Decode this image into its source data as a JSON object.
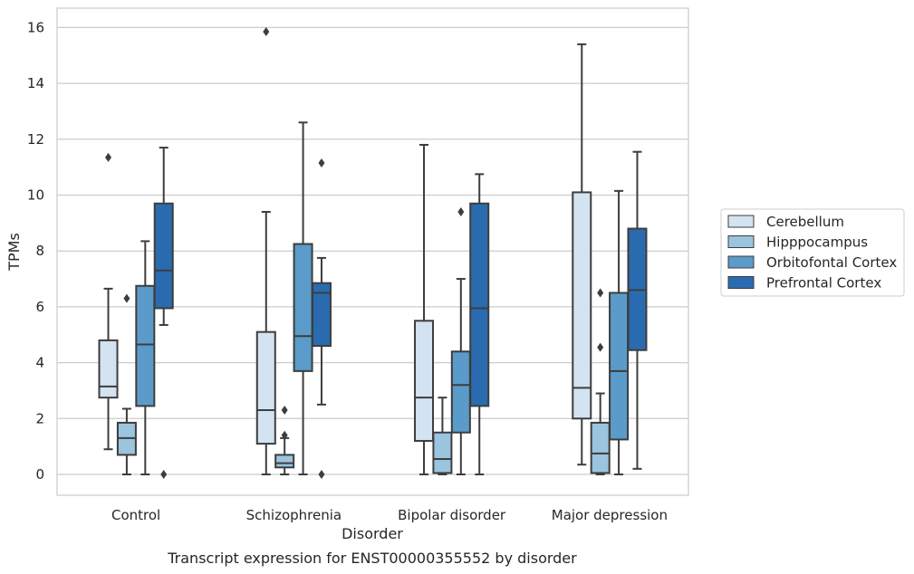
{
  "chart_data": {
    "type": "boxplot",
    "title": "Transcript expression for ENST00000355552 by disorder",
    "xlabel": "Disorder",
    "ylabel": "TPMs",
    "ylim": [
      -0.75,
      16.65
    ],
    "yticks": [
      0,
      2,
      4,
      6,
      8,
      10,
      12,
      14,
      16
    ],
    "grid": "horizontal",
    "legend_position": "right",
    "categories": [
      "Control",
      "Schizophrenia",
      "Bipolar disorder",
      "Major depression"
    ],
    "series": [
      {
        "name": "Cerebellum",
        "color": "#d4e3f1",
        "boxes": [
          {
            "whislo": 0.9,
            "q1": 2.75,
            "med": 3.15,
            "q3": 4.8,
            "whishi": 6.65,
            "fliers": [
              11.35
            ]
          },
          {
            "whislo": 0.0,
            "q1": 1.1,
            "med": 2.3,
            "q3": 5.1,
            "whishi": 9.4,
            "fliers": [
              15.85
            ]
          },
          {
            "whislo": 0.0,
            "q1": 1.2,
            "med": 2.75,
            "q3": 5.5,
            "whishi": 11.8,
            "fliers": []
          },
          {
            "whislo": 0.35,
            "q1": 2.0,
            "med": 3.1,
            "q3": 10.1,
            "whishi": 15.4,
            "fliers": []
          }
        ]
      },
      {
        "name": "Hipppocampus",
        "color": "#9bc4df",
        "boxes": [
          {
            "whislo": 0.0,
            "q1": 0.7,
            "med": 1.3,
            "q3": 1.85,
            "whishi": 2.35,
            "fliers": [
              6.3
            ]
          },
          {
            "whislo": 0.0,
            "q1": 0.25,
            "med": 0.4,
            "q3": 0.7,
            "whishi": 1.3,
            "fliers": [
              1.4,
              2.3
            ]
          },
          {
            "whislo": 0.0,
            "q1": 0.05,
            "med": 0.55,
            "q3": 1.5,
            "whishi": 2.75,
            "fliers": []
          },
          {
            "whislo": 0.0,
            "q1": 0.05,
            "med": 0.75,
            "q3": 1.85,
            "whishi": 2.9,
            "fliers": [
              4.55,
              6.5
            ]
          }
        ]
      },
      {
        "name": "Orbitofontal Cortex",
        "color": "#5a9bc9",
        "boxes": [
          {
            "whislo": 0.0,
            "q1": 2.45,
            "med": 4.65,
            "q3": 6.75,
            "whishi": 8.35,
            "fliers": []
          },
          {
            "whislo": 0.0,
            "q1": 3.7,
            "med": 4.95,
            "q3": 8.25,
            "whishi": 12.6,
            "fliers": []
          },
          {
            "whislo": 0.0,
            "q1": 1.5,
            "med": 3.2,
            "q3": 4.4,
            "whishi": 7.0,
            "fliers": [
              9.4
            ]
          },
          {
            "whislo": 0.0,
            "q1": 1.25,
            "med": 3.7,
            "q3": 6.5,
            "whishi": 10.15,
            "fliers": []
          }
        ]
      },
      {
        "name": "Prefrontal Cortex",
        "color": "#2a6bb0",
        "boxes": [
          {
            "whislo": 5.35,
            "q1": 5.95,
            "med": 7.3,
            "q3": 9.7,
            "whishi": 11.7,
            "fliers": [
              0.0
            ]
          },
          {
            "whislo": 2.5,
            "q1": 4.6,
            "med": 6.5,
            "q3": 6.85,
            "whishi": 7.75,
            "fliers": [
              0.0,
              11.15
            ]
          },
          {
            "whislo": 0.0,
            "q1": 2.45,
            "med": 5.95,
            "q3": 9.7,
            "whishi": 10.75,
            "fliers": []
          },
          {
            "whislo": 0.2,
            "q1": 4.45,
            "med": 6.6,
            "q3": 8.8,
            "whishi": 11.55,
            "fliers": []
          }
        ]
      }
    ]
  }
}
